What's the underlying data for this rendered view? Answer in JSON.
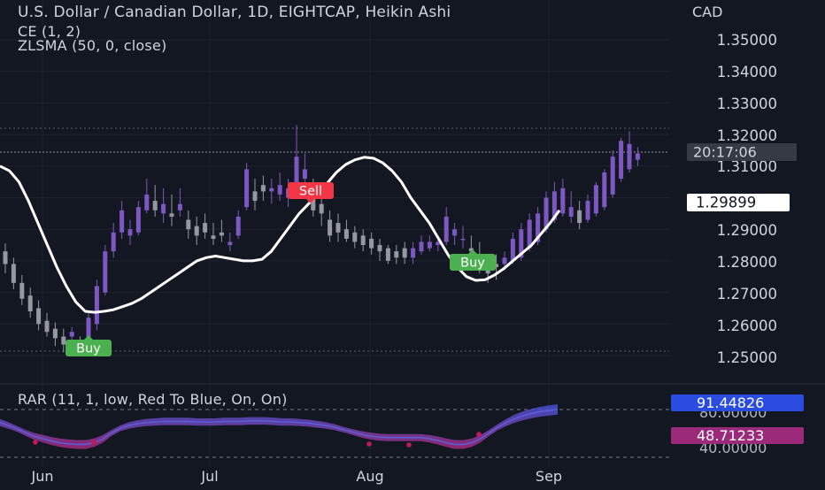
{
  "header": {
    "title": "U.S. Dollar / Canadian Dollar, 1D, EIGHTCAP, Heikin Ashi",
    "indicator_ce": "CE (1, 2)",
    "indicator_zlsma": "ZLSMA (50, 0, close)",
    "currency": "CAD"
  },
  "price_axis": {
    "ticks": [
      "1.35000",
      "1.34000",
      "1.33000",
      "1.32000",
      "1.31000",
      "1.29000",
      "1.28000",
      "1.27000",
      "1.26000",
      "1.25000"
    ],
    "current_price": "1.29899",
    "countdown": "20:17:06"
  },
  "time_axis": {
    "labels": [
      "Jun",
      "Jul",
      "Aug",
      "Sep"
    ]
  },
  "signals": [
    {
      "label": "Buy",
      "color": "#4caf50"
    },
    {
      "label": "Sell",
      "color": "#f23645"
    },
    {
      "label": "Buy",
      "color": "#4caf50"
    }
  ],
  "rar": {
    "legend": "RAR (11, 1, low, Red To Blue, On, On)",
    "value_high": "91.44826",
    "value_low": "48.71233",
    "hidden_tick_1": "80.00000",
    "hidden_tick_2": "40.00000"
  },
  "colors": {
    "bg": "#131722",
    "bull": "#7e57c2",
    "bear": "#9598a1",
    "zlsma": "#ffffff",
    "buy": "#4caf50",
    "sell": "#f23645",
    "rar_blue": "#2962ff",
    "rar_red": "#c2185b"
  },
  "chart_data": {
    "type": "candlestick",
    "candles": [
      [
        1.283,
        1.2855,
        1.276,
        1.279
      ],
      [
        1.279,
        1.281,
        1.271,
        1.273
      ],
      [
        1.273,
        1.2755,
        1.266,
        1.268
      ],
      [
        1.269,
        1.2715,
        1.262,
        1.264
      ],
      [
        1.265,
        1.2675,
        1.258,
        1.26
      ],
      [
        1.261,
        1.2635,
        1.256,
        1.2575
      ],
      [
        1.2585,
        1.2605,
        1.253,
        1.2555
      ],
      [
        1.256,
        1.2585,
        1.251,
        1.2535
      ],
      [
        1.256,
        1.259,
        1.2535,
        1.2575
      ],
      [
        1.254,
        1.256,
        1.251,
        1.2535
      ],
      [
        1.2545,
        1.264,
        1.253,
        1.262
      ],
      [
        1.26,
        1.274,
        1.258,
        1.272
      ],
      [
        1.27,
        1.285,
        1.269,
        1.283
      ],
      [
        1.283,
        1.292,
        1.281,
        1.289
      ],
      [
        1.289,
        1.299,
        1.287,
        1.296
      ],
      [
        1.288,
        1.293,
        1.285,
        1.29
      ],
      [
        1.289,
        1.299,
        1.288,
        1.297
      ],
      [
        1.296,
        1.306,
        1.295,
        1.301
      ],
      [
        1.299,
        1.304,
        1.294,
        1.296
      ],
      [
        1.295,
        1.303,
        1.292,
        1.298
      ],
      [
        1.295,
        1.301,
        1.291,
        1.294
      ],
      [
        1.296,
        1.303,
        1.294,
        1.298
      ],
      [
        1.293,
        1.296,
        1.287,
        1.29
      ],
      [
        1.291,
        1.294,
        1.285,
        1.288
      ],
      [
        1.292,
        1.295,
        1.287,
        1.289
      ],
      [
        1.288,
        1.292,
        1.285,
        1.287
      ],
      [
        1.289,
        1.293,
        1.286,
        1.288
      ],
      [
        1.285,
        1.289,
        1.283,
        1.286
      ],
      [
        1.288,
        1.296,
        1.287,
        1.294
      ],
      [
        1.297,
        1.311,
        1.296,
        1.309
      ],
      [
        1.302,
        1.306,
        1.296,
        1.299
      ],
      [
        1.304,
        1.307,
        1.299,
        1.302
      ],
      [
        1.302,
        1.306,
        1.298,
        1.303
      ],
      [
        1.301,
        1.308,
        1.299,
        1.304
      ],
      [
        1.3,
        1.306,
        1.297,
        1.303
      ],
      [
        1.303,
        1.323,
        1.301,
        1.313
      ],
      [
        1.306,
        1.314,
        1.302,
        1.309
      ],
      [
        1.303,
        1.306,
        1.294,
        1.296
      ],
      [
        1.298,
        1.302,
        1.291,
        1.295
      ],
      [
        1.293,
        1.296,
        1.286,
        1.288
      ],
      [
        1.292,
        1.295,
        1.286,
        1.289
      ],
      [
        1.29,
        1.293,
        1.286,
        1.287
      ],
      [
        1.289,
        1.291,
        1.284,
        1.286
      ],
      [
        1.288,
        1.29,
        1.283,
        1.285
      ],
      [
        1.287,
        1.289,
        1.282,
        1.284
      ],
      [
        1.285,
        1.287,
        1.28,
        1.283
      ],
      [
        1.284,
        1.285,
        1.279,
        1.28
      ],
      [
        1.283,
        1.285,
        1.279,
        1.281
      ],
      [
        1.284,
        1.286,
        1.279,
        1.281
      ],
      [
        1.281,
        1.286,
        1.279,
        1.284
      ],
      [
        1.283,
        1.288,
        1.282,
        1.286
      ],
      [
        1.284,
        1.288,
        1.283,
        1.286
      ],
      [
        1.285,
        1.288,
        1.283,
        1.286
      ],
      [
        1.286,
        1.297,
        1.285,
        1.294
      ],
      [
        1.288,
        1.292,
        1.285,
        1.29
      ],
      [
        1.287,
        1.291,
        1.284,
        1.287
      ],
      [
        1.284,
        1.288,
        1.28,
        1.283
      ],
      [
        1.281,
        1.286,
        1.276,
        1.278
      ],
      [
        1.278,
        1.281,
        1.273,
        1.276
      ],
      [
        1.279,
        1.282,
        1.274,
        1.278
      ],
      [
        1.279,
        1.283,
        1.277,
        1.281
      ],
      [
        1.28,
        1.289,
        1.279,
        1.287
      ],
      [
        1.281,
        1.292,
        1.28,
        1.29
      ],
      [
        1.284,
        1.295,
        1.283,
        1.293
      ],
      [
        1.286,
        1.297,
        1.285,
        1.295
      ],
      [
        1.29,
        1.302,
        1.289,
        1.3
      ],
      [
        1.293,
        1.305,
        1.292,
        1.302
      ],
      [
        1.295,
        1.306,
        1.294,
        1.303
      ],
      [
        1.294,
        1.302,
        1.292,
        1.297
      ],
      [
        1.296,
        1.299,
        1.29,
        1.292
      ],
      [
        1.293,
        1.301,
        1.292,
        1.299
      ],
      [
        1.295,
        1.305,
        1.294,
        1.304
      ],
      [
        1.297,
        1.309,
        1.296,
        1.308
      ],
      [
        1.301,
        1.315,
        1.3,
        1.313
      ],
      [
        1.306,
        1.319,
        1.305,
        1.318
      ],
      [
        1.309,
        1.321,
        1.308,
        1.317
      ],
      [
        1.312,
        1.316,
        1.31,
        1.314
      ]
    ],
    "zlsma": [
      1.31,
      1.3085,
      1.305,
      1.299,
      1.292,
      1.285,
      1.278,
      1.272,
      1.267,
      1.264,
      1.2637,
      1.264,
      1.2645,
      1.2655,
      1.2665,
      1.268,
      1.27,
      1.272,
      1.274,
      1.276,
      1.278,
      1.28,
      1.281,
      1.2815,
      1.281,
      1.2805,
      1.28,
      1.28,
      1.2805,
      1.283,
      1.287,
      1.291,
      1.295,
      1.298,
      1.301,
      1.3045,
      1.308,
      1.3105,
      1.312,
      1.3128,
      1.3125,
      1.311,
      1.3085,
      1.305,
      1.3,
      1.296,
      1.292,
      1.287,
      1.282,
      1.278,
      1.275,
      1.2738,
      1.274,
      1.2755,
      1.2775,
      1.28,
      1.2825,
      1.285,
      1.2885,
      1.292,
      1.296
    ],
    "signals": [
      {
        "label": "Buy",
        "index": 10,
        "price": 1.258
      },
      {
        "label": "Sell",
        "index": 43,
        "price": 1.309
      },
      {
        "label": "Buy",
        "index": 64,
        "price": 1.28
      }
    ],
    "rar_center": [
      68,
      63,
      57,
      50,
      44,
      40,
      36,
      33,
      31,
      30,
      30,
      33,
      40,
      50,
      58,
      63,
      66,
      68,
      69,
      70,
      70,
      70,
      70,
      69,
      69,
      69,
      70,
      70,
      70,
      71,
      71,
      71,
      70,
      69,
      69,
      68,
      67,
      65,
      63,
      60,
      56,
      52,
      48,
      45,
      43,
      42,
      42,
      42,
      42,
      42,
      40,
      37,
      33,
      30,
      30,
      33,
      40,
      50,
      60,
      68,
      75,
      80,
      84,
      87,
      89,
      91
    ],
    "rar_values": {
      "high": 91.44826,
      "low": 48.71233
    },
    "y_range": [
      1.245,
      1.357
    ]
  }
}
